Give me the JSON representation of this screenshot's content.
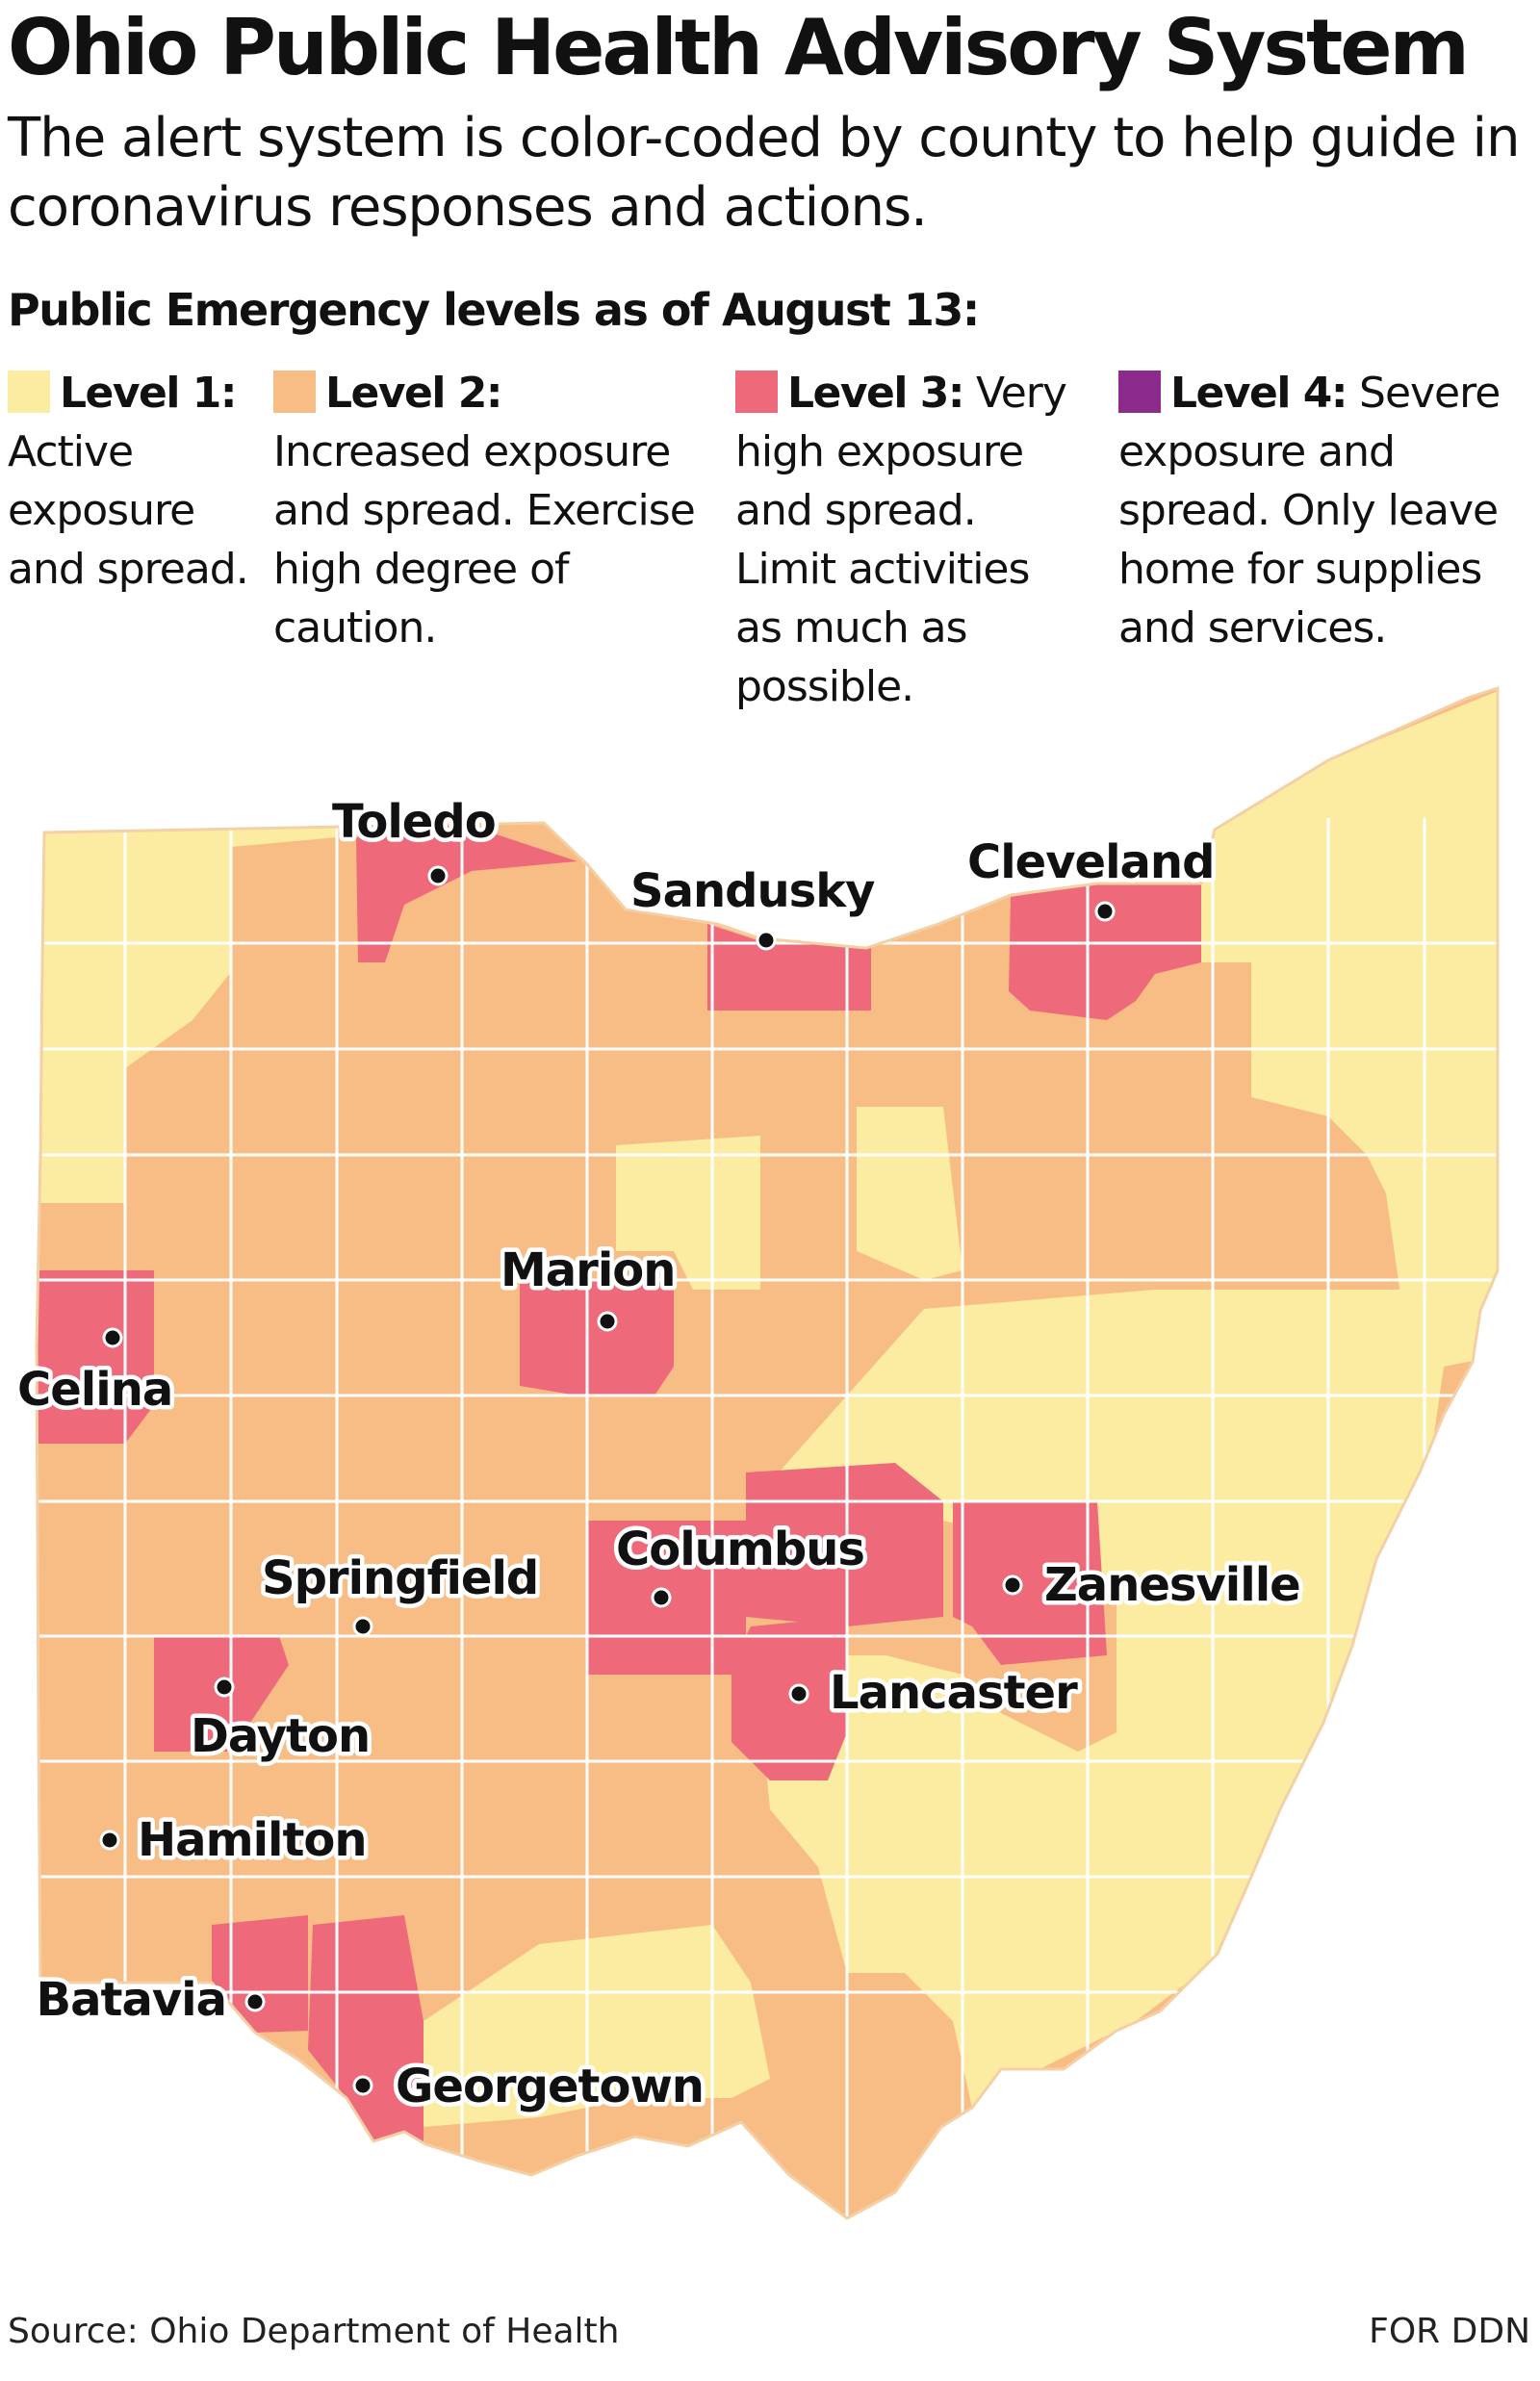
{
  "title": "Ohio Public Health Advisory System",
  "subtitle": "The alert system is color-coded by county to help guide in coronavirus responses and actions.",
  "levels_heading": "Public Emergency levels as of August 13:",
  "legend": [
    {
      "label": "Level 1:",
      "description": "Active exposure and spread.",
      "color": "#fbeca1"
    },
    {
      "label": "Level 2:",
      "description": "Increased exposure and spread. Exercise high degree of caution.",
      "color": "#f8bc85"
    },
    {
      "label": "Level 3:",
      "description": "Very high exposure and spread. Limit activities as much as possible.",
      "color": "#ee6a7b"
    },
    {
      "label": "Level 4:",
      "description": "Severe exposure and spread. Only leave home for supplies and services.",
      "color": "#8c2a8e"
    }
  ],
  "cities": [
    {
      "name": "Toledo",
      "level": 3
    },
    {
      "name": "Sandusky",
      "level": 3
    },
    {
      "name": "Cleveland",
      "level": 3
    },
    {
      "name": "Marion",
      "level": 3
    },
    {
      "name": "Celina",
      "level": 3
    },
    {
      "name": "Columbus",
      "level": 3
    },
    {
      "name": "Springfield",
      "level": 2
    },
    {
      "name": "Zanesville",
      "level": 3
    },
    {
      "name": "Lancaster",
      "level": 3
    },
    {
      "name": "Dayton",
      "level": 3
    },
    {
      "name": "Hamilton",
      "level": 2
    },
    {
      "name": "Batavia",
      "level": 3
    },
    {
      "name": "Georgetown",
      "level": 3
    }
  ],
  "source": "Source: Ohio Department of Health",
  "credit": "FOR DDN"
}
